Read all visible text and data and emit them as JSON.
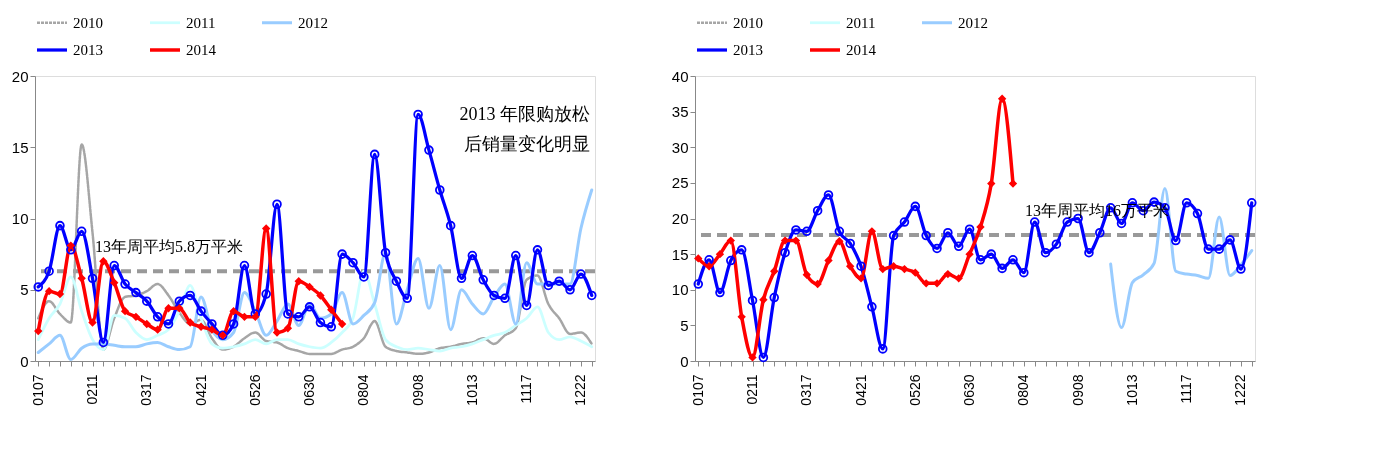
{
  "chart_data": [
    {
      "type": "line",
      "categories": [
        "0107",
        null,
        null,
        null,
        null,
        "0211",
        null,
        null,
        null,
        null,
        "0317",
        null,
        null,
        null,
        null,
        "0421",
        null,
        null,
        null,
        null,
        "0526",
        null,
        null,
        null,
        null,
        "0630",
        null,
        null,
        null,
        null,
        "0804",
        null,
        null,
        null,
        null,
        "0908",
        null,
        null,
        null,
        null,
        "1013",
        null,
        null,
        null,
        null,
        "1117",
        null,
        null,
        null,
        null,
        "1222",
        null
      ],
      "series": [
        {
          "name": "2010",
          "color": "#a6a6a6",
          "line_style": "dotted",
          "marker": "none",
          "values": [
            3.0,
            4.2,
            3.3,
            2.7,
            15.2,
            9.0,
            0.8,
            3.0,
            4.5,
            4.6,
            4.9,
            5.4,
            4.6,
            3.4,
            2.6,
            2.9,
            1.6,
            0.8,
            1.0,
            1.6,
            2.0,
            1.4,
            1.3,
            0.9,
            0.7,
            0.5,
            0.5,
            0.5,
            0.8,
            1.0,
            1.6,
            2.8,
            1.0,
            0.7,
            0.6,
            0.5,
            0.6,
            0.9,
            1.0,
            1.2,
            1.3,
            1.6,
            1.2,
            1.8,
            2.3,
            5.7,
            6.0,
            4.0,
            3.0,
            1.9,
            2.0,
            1.2
          ]
        },
        {
          "name": "2011",
          "color": "#ccffff",
          "line_style": "solid",
          "marker": "none",
          "values": [
            1.5,
            3.0,
            4.0,
            5.9,
            3.5,
            1.5,
            0.8,
            3.2,
            3.0,
            2.0,
            1.5,
            1.8,
            2.2,
            3.5,
            5.3,
            3.0,
            1.2,
            0.9,
            1.0,
            1.2,
            1.5,
            1.2,
            1.5,
            1.5,
            1.2,
            1.0,
            0.9,
            1.3,
            2.0,
            3.0,
            6.3,
            4.0,
            1.5,
            1.0,
            0.8,
            0.9,
            0.8,
            0.7,
            0.9,
            1.0,
            1.2,
            1.5,
            1.8,
            2.0,
            2.5,
            3.0,
            3.8,
            2.0,
            1.5,
            1.7,
            1.4,
            1.0
          ]
        },
        {
          "name": "2012",
          "color": "#99ccff",
          "line_style": "solid",
          "marker": "none",
          "values": [
            0.6,
            1.2,
            1.8,
            0.1,
            0.9,
            1.2,
            1.2,
            1.1,
            1.0,
            1.0,
            1.2,
            1.3,
            1.0,
            0.8,
            1.0,
            4.5,
            2.2,
            1.5,
            2.0,
            4.8,
            3.5,
            1.8,
            2.8,
            4.0,
            2.5,
            4.0,
            3.0,
            3.3,
            4.8,
            2.6,
            3.2,
            4.1,
            7.6,
            2.6,
            5.0,
            7.2,
            3.7,
            6.7,
            2.2,
            5.0,
            4.0,
            3.3,
            4.5,
            5.4,
            2.6,
            6.9,
            5.4,
            5.4,
            5.4,
            5.4,
            9.3,
            12.0
          ]
        },
        {
          "name": "2013",
          "color": "#0000ff",
          "line_style": "solid",
          "marker": "circle",
          "values": [
            5.2,
            6.3,
            9.5,
            7.8,
            9.1,
            5.8,
            1.3,
            6.7,
            5.4,
            4.8,
            4.2,
            3.1,
            2.6,
            4.2,
            4.6,
            3.5,
            2.6,
            1.8,
            2.6,
            6.7,
            3.3,
            4.7,
            11.0,
            3.3,
            3.1,
            3.8,
            2.7,
            2.4,
            7.5,
            6.9,
            5.9,
            14.5,
            7.6,
            5.6,
            4.4,
            17.3,
            14.8,
            12.0,
            9.5,
            5.8,
            7.4,
            5.7,
            4.6,
            4.4,
            7.4,
            3.9,
            7.8,
            5.3,
            5.6,
            5.0,
            6.1,
            4.6
          ]
        },
        {
          "name": "2014",
          "color": "#ff0000",
          "line_style": "solid",
          "marker": "diamond",
          "values": [
            2.1,
            4.9,
            4.7,
            8.1,
            5.8,
            2.7,
            7.0,
            5.5,
            3.5,
            3.1,
            2.6,
            2.2,
            3.7,
            3.7,
            2.7,
            2.4,
            2.2,
            1.8,
            3.5,
            3.1,
            3.1,
            9.3,
            2.0,
            2.3,
            5.6,
            5.2,
            4.6,
            3.6,
            2.6,
            null,
            null,
            null,
            null,
            null,
            null,
            null,
            null,
            null,
            null,
            null,
            null,
            null,
            null,
            null,
            null,
            null,
            null,
            null,
            null,
            null,
            null,
            null
          ]
        }
      ],
      "ylim": [
        0,
        20
      ],
      "yticks": [
        0,
        5,
        10,
        15,
        20
      ],
      "grid": false,
      "legend": "top",
      "ref_lines": [
        {
          "axis": "y",
          "value": 6.3,
          "label": "13年周平均5.8万平米",
          "color": "#999999",
          "line_style": "dashed"
        }
      ],
      "annotations": [
        "2013 年限购放松",
        "后销量变化明显"
      ]
    },
    {
      "type": "line",
      "categories": [
        "0107",
        null,
        null,
        null,
        null,
        "0211",
        null,
        null,
        null,
        null,
        "0317",
        null,
        null,
        null,
        null,
        "0421",
        null,
        null,
        null,
        null,
        "0526",
        null,
        null,
        null,
        null,
        "0630",
        null,
        null,
        null,
        null,
        "0804",
        null,
        null,
        null,
        null,
        "0908",
        null,
        null,
        null,
        null,
        "1013",
        null,
        null,
        null,
        null,
        "1117",
        null,
        null,
        null,
        null,
        "1222",
        null
      ],
      "series": [
        {
          "name": "2010",
          "color": "#a6a6a6",
          "line_style": "dotted",
          "marker": "none",
          "values": [
            null,
            null,
            null,
            null,
            null,
            null,
            null,
            null,
            null,
            null,
            null,
            null,
            null,
            null,
            null,
            null,
            null,
            null,
            null,
            null,
            null,
            null,
            null,
            null,
            null,
            null,
            null,
            null,
            null,
            null,
            null,
            null,
            null,
            null,
            null,
            null,
            null,
            null,
            null,
            null,
            null,
            null,
            null,
            null,
            null,
            null,
            null,
            null,
            null,
            null,
            null,
            null
          ]
        },
        {
          "name": "2011",
          "color": "#ccffff",
          "line_style": "solid",
          "marker": "none",
          "values": [
            null,
            null,
            null,
            null,
            null,
            null,
            null,
            null,
            null,
            null,
            null,
            null,
            null,
            null,
            null,
            null,
            null,
            null,
            null,
            null,
            null,
            null,
            null,
            null,
            null,
            null,
            null,
            null,
            null,
            null,
            null,
            null,
            null,
            null,
            null,
            null,
            null,
            null,
            null,
            null,
            null,
            null,
            null,
            null,
            null,
            null,
            null,
            null,
            null,
            null,
            null,
            null
          ]
        },
        {
          "name": "2012",
          "color": "#99ccff",
          "line_style": "solid",
          "marker": "none",
          "values": [
            null,
            null,
            null,
            null,
            null,
            null,
            null,
            null,
            null,
            null,
            null,
            null,
            null,
            null,
            null,
            null,
            null,
            null,
            null,
            null,
            null,
            null,
            null,
            null,
            null,
            null,
            null,
            null,
            null,
            null,
            null,
            null,
            null,
            null,
            null,
            null,
            null,
            null,
            13.6,
            4.7,
            11.0,
            12.1,
            13.7,
            24.2,
            12.6,
            12.2,
            12.0,
            11.6,
            20.2,
            12.0,
            13.5,
            15.5
          ]
        },
        {
          "name": "2013",
          "color": "#0000ff",
          "line_style": "solid",
          "marker": "circle",
          "values": [
            10.8,
            14.2,
            9.6,
            14.1,
            15.6,
            8.5,
            0.5,
            8.9,
            15.2,
            18.4,
            18.2,
            21.1,
            23.3,
            18.2,
            16.5,
            13.3,
            7.6,
            1.7,
            17.6,
            19.5,
            21.7,
            17.6,
            15.8,
            18.0,
            16.1,
            18.5,
            14.2,
            15.0,
            13.0,
            14.2,
            12.4,
            19.5,
            15.2,
            16.4,
            19.5,
            20.0,
            15.2,
            18.0,
            21.5,
            19.3,
            22.2,
            21.1,
            22.3,
            21.5,
            16.9,
            22.2,
            20.7,
            15.7,
            15.7,
            17.0,
            12.9,
            22.2
          ]
        },
        {
          "name": "2014",
          "color": "#ff0000",
          "line_style": "solid",
          "marker": "diamond",
          "values": [
            14.4,
            13.3,
            15.0,
            16.9,
            6.2,
            0.5,
            8.6,
            12.6,
            16.9,
            16.9,
            12.1,
            10.8,
            14.1,
            16.8,
            13.3,
            11.6,
            18.2,
            12.9,
            13.3,
            12.9,
            12.4,
            10.9,
            10.9,
            12.2,
            11.6,
            15.0,
            18.8,
            24.9,
            36.8,
            24.9,
            null,
            null,
            null,
            null,
            null,
            null,
            null,
            null,
            null,
            null,
            null,
            null,
            null,
            null,
            null,
            null,
            null,
            null,
            null,
            null,
            null,
            null
          ]
        }
      ],
      "ylim": [
        0,
        40
      ],
      "yticks": [
        0,
        5,
        10,
        15,
        20,
        25,
        30,
        35,
        40
      ],
      "grid": false,
      "legend": "top",
      "ref_lines": [
        {
          "axis": "y",
          "value": 17.7,
          "label": "13年周平均16万平米",
          "color": "#999999",
          "line_style": "dashed"
        }
      ]
    }
  ]
}
